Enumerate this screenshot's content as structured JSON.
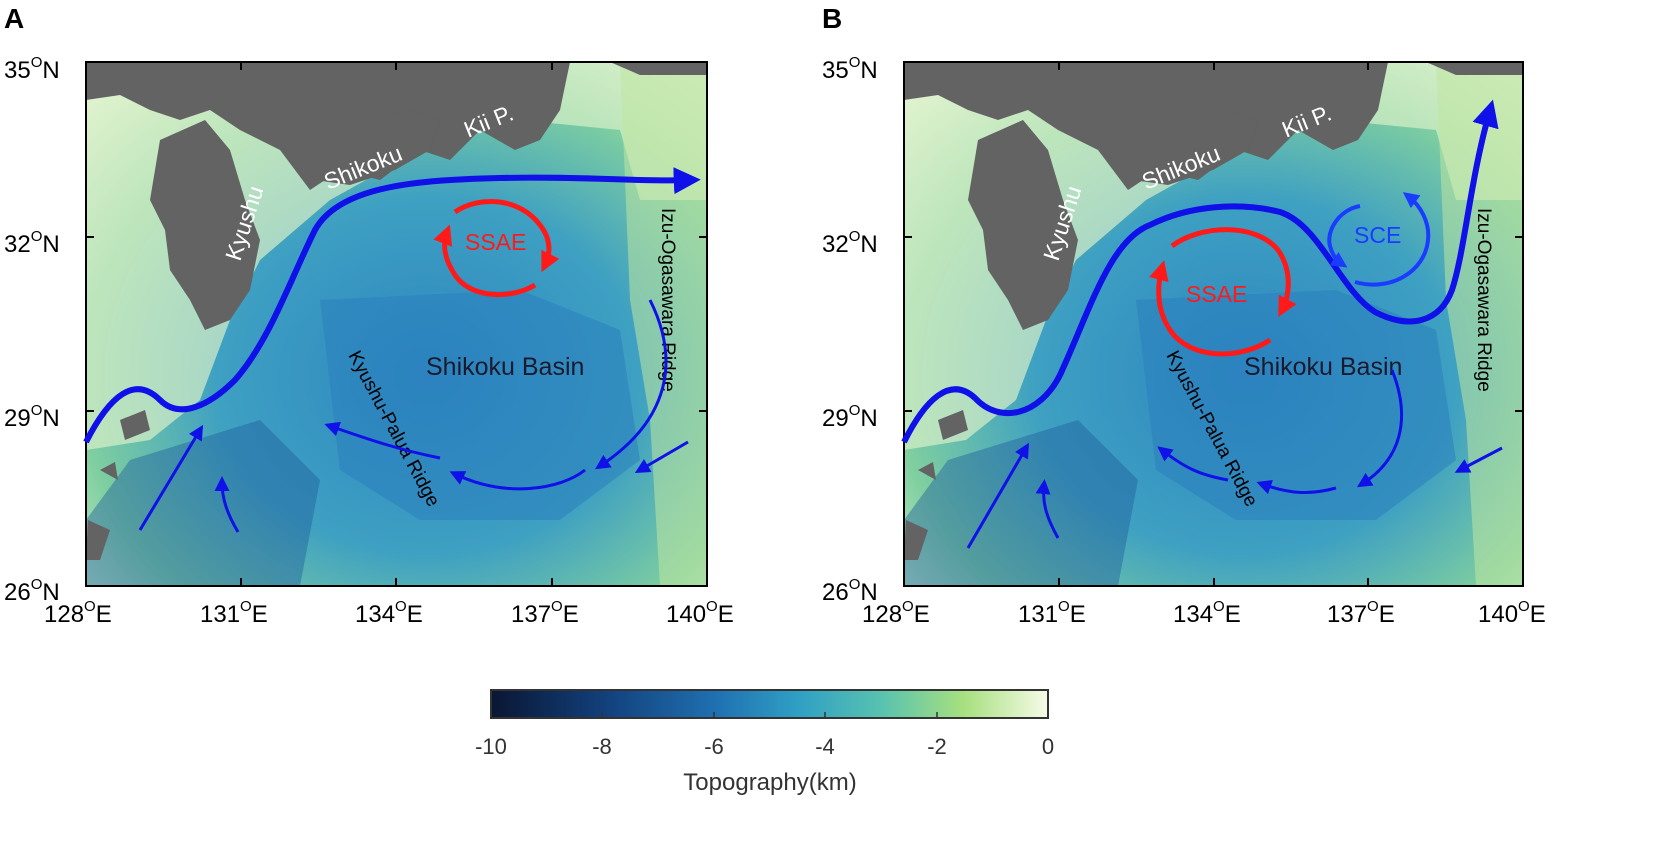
{
  "panels": [
    {
      "letter": "A",
      "lon_ticks": [
        "128",
        "131",
        "134",
        "137",
        "140"
      ],
      "lat_ticks": [
        "35",
        "32",
        "29",
        "26"
      ],
      "lon_suffix": "E",
      "lat_suffix": "N",
      "degree_symbol": "O",
      "labels": {
        "kyushu": "Kyushu",
        "shikoku": "Shikoku",
        "kii": "Kii P.",
        "basin": "Shikoku Basin",
        "kp_ridge": "Kyushu-Palua Ridge",
        "io_ridge": "Izu-Ogasawara Ridge",
        "ssae": "SSAE"
      }
    },
    {
      "letter": "B",
      "lon_ticks": [
        "128",
        "131",
        "134",
        "137",
        "140"
      ],
      "lat_ticks": [
        "35",
        "32",
        "29",
        "26"
      ],
      "lon_suffix": "E",
      "lat_suffix": "N",
      "degree_symbol": "O",
      "labels": {
        "kyushu": "Kyushu",
        "shikoku": "Shikoku",
        "kii": "Kii P.",
        "basin": "Shikoku Basin",
        "kp_ridge": "Kyushu-Palua Ridge",
        "io_ridge": "Izu-Ogasawara Ridge",
        "ssae": "SSAE",
        "sce": "SCE"
      }
    }
  ],
  "colorbar": {
    "ticks": [
      "-10",
      "-8",
      "-6",
      "-4",
      "-2",
      "0"
    ],
    "label": "Topography(km)",
    "stops": [
      "#0a1633",
      "#123f7a",
      "#1f6fb0",
      "#2f9fc4",
      "#58c2b0",
      "#a8e07f",
      "#f6fbe8"
    ]
  },
  "colors": {
    "land": "#636363",
    "kuroshio": "#1010e8",
    "anticyclonic_eddy": "#ff1a1a",
    "cyclonic_eddy": "#1a3cff"
  }
}
